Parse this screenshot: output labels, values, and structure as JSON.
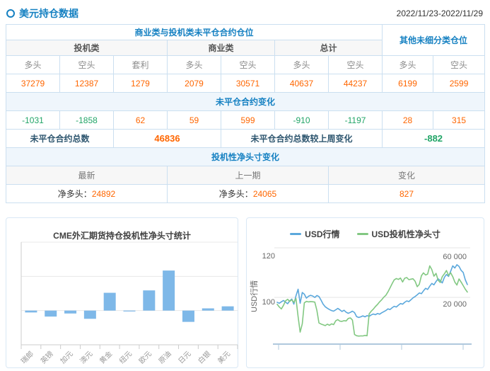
{
  "header": {
    "title": "美元持仓数据",
    "date_range": "2022/11/23-2022/11/29"
  },
  "colors": {
    "accent_blue": "#1681C2",
    "value_orange": "#FF6600",
    "value_green": "#21A567",
    "bar_blue": "#7EB8E8",
    "line_blue": "#5BA8DC",
    "line_green": "#82C882",
    "table_border": "#CBDFF0"
  },
  "table": {
    "group_header_main": "商业类与投机类未平仓合约仓位",
    "group_header_other": "其他未细分类仓位",
    "subgroups": [
      "投机类",
      "商业类",
      "总计"
    ],
    "col_headers": [
      "多头",
      "空头",
      "套利",
      "多头",
      "空头",
      "多头",
      "空头",
      "多头",
      "空头"
    ],
    "positions": [
      "37279",
      "12387",
      "1279",
      "2079",
      "30571",
      "40637",
      "44237",
      "6199",
      "2599"
    ],
    "change_header": "未平仓合约变化",
    "changes": [
      "-1031",
      "-1858",
      "62",
      "59",
      "599",
      "-910",
      "-1197",
      "28",
      "315"
    ],
    "total_label": "未平仓合约总数",
    "total_value": "46836",
    "total_change_label": "未平仓合约总数较上周变化",
    "total_change_value": "-882",
    "net_header": "投机性净头寸变化",
    "net_cols": [
      "最新",
      "上一期",
      "变化"
    ],
    "net": {
      "latest_label": "净多头：",
      "latest_value": "24892",
      "prev_label": "净多头：",
      "prev_value": "24065",
      "change_value": "827"
    }
  },
  "chart_data": [
    {
      "type": "bar",
      "title": "CME外汇期货持仓投机性净头寸统计",
      "categories": [
        "瑞郎",
        "英镑",
        "加元",
        "澳元",
        "黄金",
        "纽元",
        "欧元",
        "原油",
        "日元",
        "白银",
        "美元"
      ],
      "values": [
        -11000,
        -35000,
        -17000,
        -48000,
        104000,
        -5000,
        118000,
        234000,
        -66000,
        13000,
        24892
      ],
      "xlabel": "",
      "ylabel": "",
      "ylim": [
        -200000,
        400000
      ],
      "grid_step": 200000,
      "y_axis_labels": "hidden",
      "grid": true,
      "bar_color": "#7EB8E8"
    },
    {
      "type": "line",
      "title": "",
      "legend_position": "top",
      "ylabel_left": "USD行情",
      "left_axis": {
        "tick_labels": [
          "120",
          "100"
        ],
        "tick_values": [
          120,
          100
        ]
      },
      "right_axis": {
        "tick_labels": [
          "60 000",
          "20 000"
        ],
        "tick_values": [
          60000,
          20000
        ]
      },
      "x_tick_count": 4,
      "x_tick_labels": [],
      "series": [
        {
          "name": "USD行情",
          "axis": "left",
          "color": "#5BA8DC",
          "values": [
            100,
            99.6,
            100.2,
            100.8,
            100.1,
            99.4,
            100.6,
            101.4,
            99.2,
            102.8,
            105.6,
            99.6,
            104.2,
            103.5,
            101.8,
            102.6,
            103,
            102.7,
            102.1,
            102.9,
            102.5,
            100.9,
            99.2,
            98.1,
            97.5,
            96.9,
            96.5,
            96.2,
            96.8,
            97.4,
            96.8,
            96.1,
            96.6,
            95.8,
            95.3,
            95.7,
            96.2,
            95.6,
            93.9,
            93.5,
            93.8,
            94.2,
            93.8,
            94.3,
            94,
            94.6,
            95,
            94.7,
            95.2,
            94.9,
            95.5,
            96,
            96.5,
            97.2,
            96.9,
            97.7,
            98.3,
            98,
            98.8,
            99.5,
            99.2,
            100,
            100.6,
            100.3,
            101.1,
            101.9,
            102.5,
            103.2,
            104,
            103.7,
            104.9,
            106,
            105.5,
            106.9,
            108.1,
            107.5,
            108.9,
            110.1,
            109.3,
            108.3,
            110.7,
            111.9,
            111.1,
            113.3,
            115.6,
            114.7,
            116.1,
            115.4,
            113.7,
            112.8,
            109.7,
            107.6
          ]
        },
        {
          "name": "USD投机性净头寸",
          "axis": "right",
          "color": "#82C882",
          "values": [
            19500,
            17200,
            15600,
            18600,
            22400,
            23800,
            22000,
            23400,
            21200,
            24400,
            9000,
            -4300,
            2800,
            20800,
            22000,
            21600,
            21900,
            21700,
            21400,
            14200,
            3600,
            2600,
            2000,
            1300,
            2500,
            1600,
            2800,
            2100,
            5400,
            6400,
            5100,
            4900,
            5500,
            5300,
            7400,
            7900,
            6100,
            -6300,
            -7400,
            -7700,
            -7500,
            -7600,
            -7100,
            -7400,
            11400,
            13600,
            15400,
            17600,
            19400,
            21600,
            23400,
            25600,
            27200,
            30200,
            33600,
            37200,
            40400,
            41600,
            40800,
            42000,
            38600,
            41800,
            42400,
            40600,
            41000,
            41400,
            39200,
            34600,
            36600,
            44000,
            46400,
            44600,
            45400,
            52400,
            49200,
            43600,
            46000,
            40200,
            38200,
            43200,
            45600,
            48400,
            44200,
            46400,
            43200,
            38500,
            36000,
            41200,
            38600,
            35500,
            32500,
            30000
          ]
        }
      ]
    }
  ]
}
